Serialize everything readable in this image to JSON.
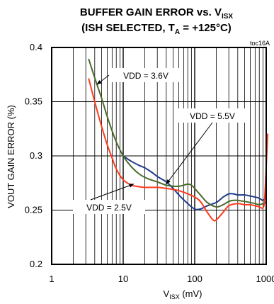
{
  "chart_data": {
    "type": "line",
    "title_main": "BUFFER GAIN ERROR vs. V",
    "title_main_sub": "ISX",
    "title_line2_pre": "(ISH SELECTED, T",
    "title_line2_sub": "A",
    "title_line2_post": " = +125°C)",
    "tag": "toc16A",
    "ylabel": "VOUT GAIN ERROR (%)",
    "xlabel_main": "V",
    "xlabel_sub": "ISX",
    "xlabel_unit": " (mV)",
    "x_scale": "log",
    "xlim": [
      1,
      1000
    ],
    "ylim": [
      0.2,
      0.4
    ],
    "x_ticks": [
      1,
      10,
      100,
      1000
    ],
    "x_tick_labels": [
      "1",
      "10",
      "100",
      "1000"
    ],
    "y_ticks": [
      0.2,
      0.25,
      0.3,
      0.35,
      0.4
    ],
    "y_tick_labels": [
      "0.2",
      "0.25",
      "0.3",
      "0.35",
      "0.4"
    ],
    "grid": true,
    "series": [
      {
        "name": "VDD = 3.6V",
        "color": "#4a6a2c",
        "x": [
          3.3,
          4,
          5,
          6,
          7,
          8,
          10,
          13,
          17,
          22,
          30,
          40,
          50,
          60,
          70,
          80,
          90,
          100,
          120,
          150,
          200,
          250,
          300,
          350,
          400,
          500,
          600,
          700,
          800,
          900,
          1000
        ],
        "y": [
          0.389,
          0.372,
          0.353,
          0.336,
          0.323,
          0.313,
          0.3,
          0.29,
          0.283,
          0.279,
          0.276,
          0.273,
          0.272,
          0.272,
          0.273,
          0.274,
          0.273,
          0.27,
          0.264,
          0.257,
          0.253,
          0.255,
          0.258,
          0.259,
          0.259,
          0.258,
          0.257,
          0.256,
          0.255,
          0.256,
          0.257
        ]
      },
      {
        "name": "VDD = 5.5V",
        "color": "#1f3b8a",
        "x": [
          10,
          13,
          17,
          20,
          25,
          30,
          40,
          50,
          60,
          80,
          100,
          120,
          150,
          200,
          250,
          300,
          350,
          400,
          500,
          600,
          700,
          800,
          900,
          1000
        ],
        "y": [
          0.3,
          0.295,
          0.291,
          0.289,
          0.285,
          0.281,
          0.276,
          0.27,
          0.264,
          0.256,
          0.251,
          0.251,
          0.254,
          0.257,
          0.262,
          0.265,
          0.265,
          0.264,
          0.264,
          0.263,
          0.262,
          0.261,
          0.259,
          0.262
        ]
      },
      {
        "name": "VDD = 2.5V",
        "color": "#ff3b1f",
        "x": [
          3.3,
          4,
          5,
          6,
          7,
          8,
          10,
          13,
          15,
          20,
          30,
          40,
          50,
          60,
          80,
          100,
          120,
          150,
          180,
          200,
          250,
          300,
          400,
          500,
          600,
          700,
          800,
          900,
          950,
          1000,
          1050
        ],
        "y": [
          0.371,
          0.35,
          0.327,
          0.31,
          0.298,
          0.288,
          0.278,
          0.273,
          0.272,
          0.271,
          0.271,
          0.27,
          0.269,
          0.268,
          0.265,
          0.262,
          0.258,
          0.248,
          0.241,
          0.241,
          0.248,
          0.254,
          0.256,
          0.255,
          0.255,
          0.254,
          0.253,
          0.252,
          0.26,
          0.29,
          0.32
        ]
      }
    ],
    "annotations": [
      {
        "text": "VDD = 3.6V",
        "series": "VDD = 3.6V"
      },
      {
        "text": "VDD = 5.5V",
        "series": "VDD = 5.5V"
      },
      {
        "text": "VDD = 2.5V",
        "series": "VDD = 2.5V"
      }
    ]
  }
}
